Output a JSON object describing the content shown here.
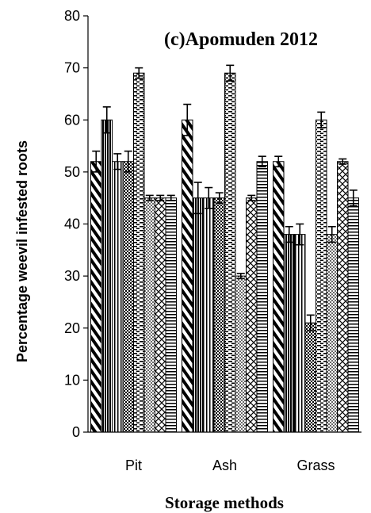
{
  "chart_data": {
    "type": "bar",
    "title": "(c)Apomuden 2012",
    "xlabel": "Storage methods",
    "ylabel": "Percentage weevil infested roots",
    "ylim": [
      0,
      80
    ],
    "yticks": [
      0,
      10,
      20,
      30,
      40,
      50,
      60,
      70,
      80
    ],
    "categories": [
      "Pit",
      "Ash",
      "Grass"
    ],
    "series": [
      {
        "pattern": "wide-diagonal",
        "values": [
          52,
          60,
          52
        ],
        "errors": [
          2,
          3,
          1
        ]
      },
      {
        "pattern": "vertical-dense",
        "values": [
          60,
          45,
          38
        ],
        "errors": [
          2.5,
          3,
          1.5
        ]
      },
      {
        "pattern": "vertical-lines",
        "values": [
          52,
          45,
          38
        ],
        "errors": [
          1.5,
          2,
          2
        ]
      },
      {
        "pattern": "checker-dense",
        "values": [
          52,
          45,
          21
        ],
        "errors": [
          2,
          1,
          1.5
        ]
      },
      {
        "pattern": "horizontal-dashed",
        "values": [
          69,
          69,
          60
        ],
        "errors": [
          1,
          1.5,
          1.5
        ]
      },
      {
        "pattern": "dotted",
        "values": [
          45,
          30,
          38
        ],
        "errors": [
          0.5,
          0.5,
          1.5
        ]
      },
      {
        "pattern": "crosshatch-diagonal",
        "values": [
          45,
          45,
          52
        ],
        "errors": [
          0.5,
          0.5,
          0.5
        ]
      },
      {
        "pattern": "horizontal-lines",
        "values": [
          45,
          52,
          45
        ],
        "errors": [
          0.5,
          1,
          1.5
        ]
      }
    ],
    "grid": false,
    "legend": "none",
    "colors": {
      "ink": "#000000",
      "fill": "#ffffff",
      "axis": "#000000"
    }
  }
}
